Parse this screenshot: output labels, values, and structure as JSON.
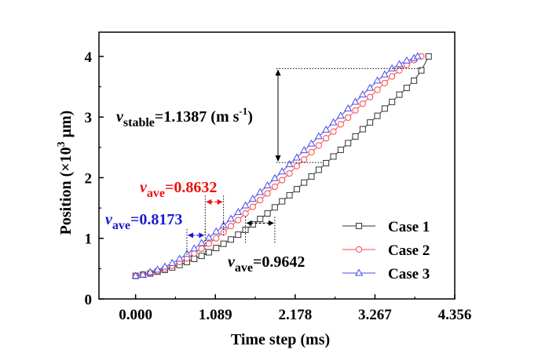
{
  "chart_data": {
    "type": "line",
    "xlabel": "Time step (ms)",
    "ylabel_parts": {
      "main": "Position (×10",
      "sup": "3",
      "unit": " μm)"
    },
    "xlim": [
      -0.5,
      4.356
    ],
    "ylim": [
      0,
      4.4
    ],
    "xticks": [
      "0.000",
      "1.089",
      "2.178",
      "3.267",
      "4.356"
    ],
    "yticks": [
      "0",
      "1",
      "2",
      "3",
      "4"
    ],
    "series": [
      {
        "name": "Case 1",
        "color": "#333333",
        "marker": "square",
        "x": [
          0.0,
          0.1,
          0.2,
          0.3,
          0.4,
          0.5,
          0.6,
          0.7,
          0.8,
          0.9,
          1.0,
          1.1,
          1.2,
          1.3,
          1.4,
          1.5,
          1.6,
          1.7,
          1.8,
          1.9,
          2.0,
          2.1,
          2.2,
          2.3,
          2.4,
          2.5,
          2.6,
          2.7,
          2.8,
          2.9,
          3.0,
          3.1,
          3.2,
          3.3,
          3.4,
          3.5,
          3.6,
          3.7,
          3.8,
          3.9,
          4.0
        ],
        "y": [
          0.38,
          0.4,
          0.42,
          0.45,
          0.48,
          0.52,
          0.56,
          0.61,
          0.66,
          0.71,
          0.77,
          0.84,
          0.91,
          0.98,
          1.06,
          1.14,
          1.23,
          1.32,
          1.41,
          1.51,
          1.61,
          1.71,
          1.81,
          1.92,
          2.02,
          2.13,
          2.24,
          2.35,
          2.46,
          2.57,
          2.68,
          2.8,
          2.91,
          3.02,
          3.14,
          3.25,
          3.37,
          3.48,
          3.6,
          3.77,
          4.0
        ]
      },
      {
        "name": "Case 2",
        "color": "#ff4444",
        "marker": "circle",
        "x": [
          0.0,
          0.1,
          0.2,
          0.3,
          0.4,
          0.5,
          0.6,
          0.7,
          0.8,
          0.9,
          1.0,
          1.1,
          1.2,
          1.3,
          1.4,
          1.5,
          1.6,
          1.7,
          1.8,
          1.9,
          2.0,
          2.1,
          2.2,
          2.3,
          2.4,
          2.5,
          2.6,
          2.7,
          2.8,
          2.9,
          3.0,
          3.1,
          3.2,
          3.3,
          3.4,
          3.5,
          3.6,
          3.7,
          3.8,
          3.9
        ],
        "y": [
          0.38,
          0.4,
          0.43,
          0.46,
          0.5,
          0.55,
          0.61,
          0.67,
          0.75,
          0.83,
          0.91,
          1.0,
          1.1,
          1.2,
          1.3,
          1.41,
          1.52,
          1.63,
          1.74,
          1.85,
          1.96,
          2.07,
          2.19,
          2.3,
          2.42,
          2.53,
          2.65,
          2.76,
          2.88,
          2.99,
          3.11,
          3.22,
          3.33,
          3.45,
          3.56,
          3.67,
          3.77,
          3.86,
          3.94,
          4.0
        ]
      },
      {
        "name": "Case 3",
        "color": "#4a4ae6",
        "marker": "triangle",
        "x": [
          0.0,
          0.1,
          0.2,
          0.3,
          0.4,
          0.5,
          0.6,
          0.7,
          0.8,
          0.9,
          1.0,
          1.1,
          1.2,
          1.3,
          1.4,
          1.5,
          1.6,
          1.7,
          1.8,
          1.9,
          2.0,
          2.1,
          2.2,
          2.3,
          2.4,
          2.5,
          2.6,
          2.7,
          2.8,
          2.9,
          3.0,
          3.1,
          3.2,
          3.3,
          3.4,
          3.5,
          3.6,
          3.7,
          3.8,
          3.85
        ],
        "y": [
          0.38,
          0.4,
          0.44,
          0.48,
          0.53,
          0.59,
          0.66,
          0.74,
          0.83,
          0.92,
          1.01,
          1.11,
          1.21,
          1.32,
          1.43,
          1.54,
          1.65,
          1.76,
          1.87,
          1.99,
          2.1,
          2.22,
          2.33,
          2.45,
          2.56,
          2.68,
          2.79,
          2.91,
          3.02,
          3.14,
          3.25,
          3.37,
          3.48,
          3.6,
          3.7,
          3.8,
          3.87,
          3.93,
          3.97,
          4.0
        ]
      }
    ],
    "annotations": {
      "stable": {
        "v": "v",
        "sub": "stable",
        "value": "=1.1387 (m s",
        "sup": "-1",
        "close": ")"
      },
      "case1": {
        "v": "v",
        "sub": "ave",
        "value": "=0.9642"
      },
      "case2": {
        "v": "v",
        "sub": "ave",
        "value": "=0.8632"
      },
      "case3": {
        "v": "v",
        "sub": "ave",
        "value": "=0.8173"
      }
    },
    "annotation_values": {
      "stable_y": [
        2.25,
        3.8
      ],
      "stable_xmax": 3.9,
      "case1_x": [
        1.5,
        1.9
      ],
      "case1_y": 1.25,
      "case2_x": [
        0.95,
        1.2
      ],
      "case2_y": 1.6,
      "case3_x": [
        0.7,
        0.95
      ],
      "case3_y": 1.05
    },
    "legend_position": "lower-right"
  }
}
